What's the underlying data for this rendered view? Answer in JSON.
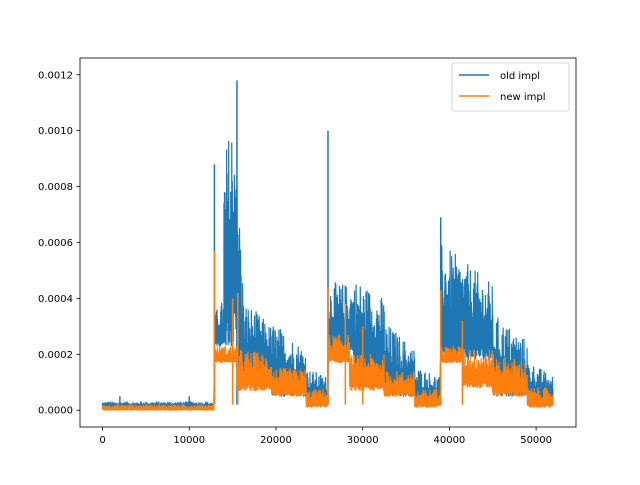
{
  "chart_data": {
    "type": "line",
    "title": "",
    "xlabel": "",
    "ylabel": "",
    "xlim": [
      -2600,
      54600
    ],
    "ylim": [
      -6e-05,
      0.00126
    ],
    "xticks": [
      0,
      10000,
      20000,
      30000,
      40000,
      50000
    ],
    "xtick_labels": [
      "0",
      "10000",
      "20000",
      "30000",
      "40000",
      "50000"
    ],
    "yticks": [
      0,
      0.0002,
      0.0004,
      0.0006,
      0.0008,
      0.001,
      0.0012
    ],
    "ytick_labels": [
      "0.0000",
      "0.0002",
      "0.0004",
      "0.0006",
      "0.0008",
      "0.0010",
      "0.0012"
    ],
    "legend": {
      "placement": "top-right",
      "entries": [
        "old impl",
        "new impl"
      ]
    },
    "series": [
      {
        "name": "old impl",
        "color": "#1f77b4",
        "segments_note": "envelope segments: [x_start, x_end, min, max_start, max_end]",
        "segments": [
          [
            0,
            12900,
            1e-05,
            3e-05,
            3e-05
          ],
          [
            12900,
            14000,
            0.00023,
            0.00035,
            0.0004
          ],
          [
            14000,
            15500,
            0.00023,
            0.0009,
            0.00118
          ],
          [
            15500,
            16200,
            0.00012,
            0.0009,
            0.0005
          ],
          [
            16200,
            19500,
            0.0001,
            0.0004,
            0.0003
          ],
          [
            19500,
            23500,
            5e-05,
            0.00032,
            0.00022
          ],
          [
            23500,
            26000,
            2e-05,
            0.00015,
            0.00012
          ],
          [
            26000,
            29000,
            0.0002,
            0.00046,
            0.00045
          ],
          [
            29000,
            32500,
            0.00012,
            0.00048,
            0.0004
          ],
          [
            32500,
            36000,
            5e-05,
            0.00032,
            0.00022
          ],
          [
            36000,
            39000,
            2e-05,
            0.00016,
            0.00012
          ],
          [
            39000,
            45000,
            0.00018,
            0.0006,
            0.00045
          ],
          [
            45000,
            49000,
            5e-05,
            0.00035,
            0.00025
          ],
          [
            49000,
            52000,
            2e-05,
            0.00018,
            0.00012
          ]
        ],
        "spikes": [
          [
            2000,
            5e-05
          ],
          [
            10000,
            5e-05
          ],
          [
            12900,
            0.00088
          ],
          [
            15500,
            0.00118
          ],
          [
            26000,
            0.001
          ],
          [
            39000,
            0.00069
          ]
        ]
      },
      {
        "name": "new impl",
        "color": "#ff7f0e",
        "segments": [
          [
            0,
            12900,
            0.0,
            2e-05,
            2e-05
          ],
          [
            12900,
            15500,
            0.00017,
            0.00023,
            0.00023
          ],
          [
            15500,
            19500,
            7e-05,
            0.00022,
            0.0002
          ],
          [
            19500,
            23500,
            5e-05,
            0.00015,
            0.00015
          ],
          [
            23500,
            26000,
            1e-05,
            7e-05,
            8e-05
          ],
          [
            26000,
            28500,
            0.00017,
            0.00027,
            0.00027
          ],
          [
            28500,
            32500,
            7e-05,
            0.0002,
            0.0002
          ],
          [
            32500,
            36000,
            5e-05,
            0.00014,
            0.00014
          ],
          [
            36000,
            39000,
            1e-05,
            7e-05,
            8e-05
          ],
          [
            39000,
            41500,
            0.00017,
            0.00023,
            0.00023
          ],
          [
            41500,
            45000,
            8e-05,
            0.00022,
            0.00022
          ],
          [
            45000,
            49000,
            5e-05,
            0.0002,
            0.00018
          ],
          [
            49000,
            52000,
            1e-05,
            8e-05,
            8e-05
          ]
        ],
        "spikes": [
          [
            12900,
            0.00057
          ],
          [
            15000,
            0.0004
          ],
          [
            15600,
            0.00042
          ],
          [
            26000,
            0.00044
          ],
          [
            28000,
            0.00038
          ],
          [
            30000,
            0.0003
          ],
          [
            39000,
            0.00043
          ],
          [
            41500,
            0.00032
          ]
        ]
      }
    ]
  }
}
